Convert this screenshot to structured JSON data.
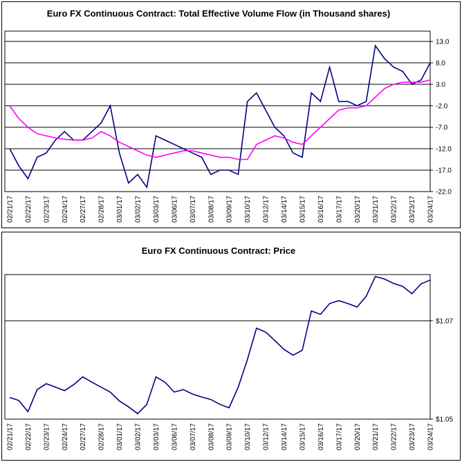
{
  "chart_data": [
    {
      "type": "line",
      "title": "Euro FX Continuous Contract: Total Effective Volume Flow (in Thousand shares)",
      "categories": [
        "02/21/17",
        null,
        "02/22/17",
        null,
        "02/23/17",
        null,
        "02/24/17",
        null,
        "02/27/17",
        null,
        "02/28/17",
        null,
        "03/01/17",
        null,
        "03/02/17",
        null,
        "03/03/17",
        null,
        "03/06/17",
        null,
        "03/07/17",
        null,
        "03/08/17",
        null,
        "03/09/17",
        null,
        "03/10/17",
        null,
        "03/12/17",
        null,
        "03/14/17",
        null,
        "03/15/17",
        null,
        "03/16/17",
        null,
        "03/17/17",
        null,
        "03/20/17",
        null,
        "03/21/17",
        null,
        "03/22/17",
        null,
        "03/23/17",
        null,
        "03/24/17"
      ],
      "series": [
        {
          "color": "#000080",
          "values": [
            -12,
            -16,
            -19,
            -14,
            -13,
            -10,
            -8,
            -10,
            -10,
            -8,
            -6,
            -2,
            -13,
            -20,
            -18,
            -21,
            -9,
            -10,
            -11,
            -12,
            -13,
            -14,
            -18,
            -17,
            -17,
            -18,
            -1,
            1,
            -3,
            -7,
            -9,
            -13,
            -14,
            1,
            -1,
            7,
            -1,
            -1,
            -2,
            -1,
            12,
            9,
            7,
            6,
            3,
            4,
            8
          ]
        },
        {
          "color": "#ff00ff",
          "values": [
            -2,
            -5,
            -7,
            -8.5,
            -9,
            -9.5,
            -9.8,
            -10,
            -10,
            -9.5,
            -8,
            -9,
            -10.5,
            -11.5,
            -12.5,
            -13.5,
            -14,
            -13.5,
            -13,
            -12.5,
            -12.5,
            -13,
            -13.5,
            -14,
            -14,
            -14.5,
            -14.5,
            -11,
            -10,
            -9,
            -9.5,
            -10.5,
            -11,
            -9,
            -7,
            -5,
            -3,
            -2.5,
            -2.5,
            -2,
            0,
            2,
            3,
            3.5,
            3.5,
            3.5,
            4
          ]
        }
      ],
      "ylim": [
        -22,
        15.4
      ],
      "yticks": [
        {
          "value": 13,
          "label": "13.0"
        },
        {
          "value": 8,
          "label": "8.0"
        },
        {
          "value": 3,
          "label": "3.0"
        },
        {
          "value": -2,
          "label": "-2.0"
        },
        {
          "value": -7,
          "label": "-7.0"
        },
        {
          "value": -12,
          "label": "-12.0"
        },
        {
          "value": -17,
          "label": "-17.0"
        },
        {
          "value": -22,
          "label": "-22.0"
        }
      ],
      "grid": true
    },
    {
      "type": "line",
      "title": "Euro FX Continuous Contract: Price",
      "categories": [
        "02/21/17",
        null,
        "02/22/17",
        null,
        "02/23/17",
        null,
        "02/24/17",
        null,
        "02/27/17",
        null,
        "02/28/17",
        null,
        "03/01/17",
        null,
        "03/02/17",
        null,
        "03/03/17",
        null,
        "03/06/17",
        null,
        "03/07/17",
        null,
        "03/08/17",
        null,
        "03/09/17",
        null,
        "03/10/17",
        null,
        "03/12/17",
        null,
        "03/14/17",
        null,
        "03/15/17",
        null,
        "03/16/17",
        null,
        "03/17/17",
        null,
        "03/20/17",
        null,
        "03/21/17",
        null,
        "03/22/17",
        null,
        "03/23/17",
        null,
        "03/24/17"
      ],
      "series": [
        {
          "color": "#000080",
          "values": [
            1.0544,
            1.0538,
            1.0515,
            1.056,
            1.0572,
            1.0565,
            1.0558,
            1.057,
            1.0586,
            1.0575,
            1.0565,
            1.0555,
            1.0537,
            1.0525,
            1.0511,
            1.053,
            1.0586,
            1.0575,
            1.0555,
            1.056,
            1.0551,
            1.0545,
            1.054,
            1.053,
            1.0523,
            1.0565,
            1.0621,
            1.0685,
            1.0677,
            1.066,
            1.0642,
            1.063,
            1.064,
            1.072,
            1.0713,
            1.0735,
            1.0741,
            1.0735,
            1.0728,
            1.075,
            1.079,
            1.0785,
            1.0776,
            1.077,
            1.0755,
            1.0775,
            1.0783
          ]
        }
      ],
      "ylim": [
        1.05,
        1.0794
      ],
      "yticks": [
        {
          "value": 1.07,
          "label": "$1.07"
        },
        {
          "value": 1.05,
          "label": "$1.05"
        }
      ],
      "grid": true
    }
  ]
}
